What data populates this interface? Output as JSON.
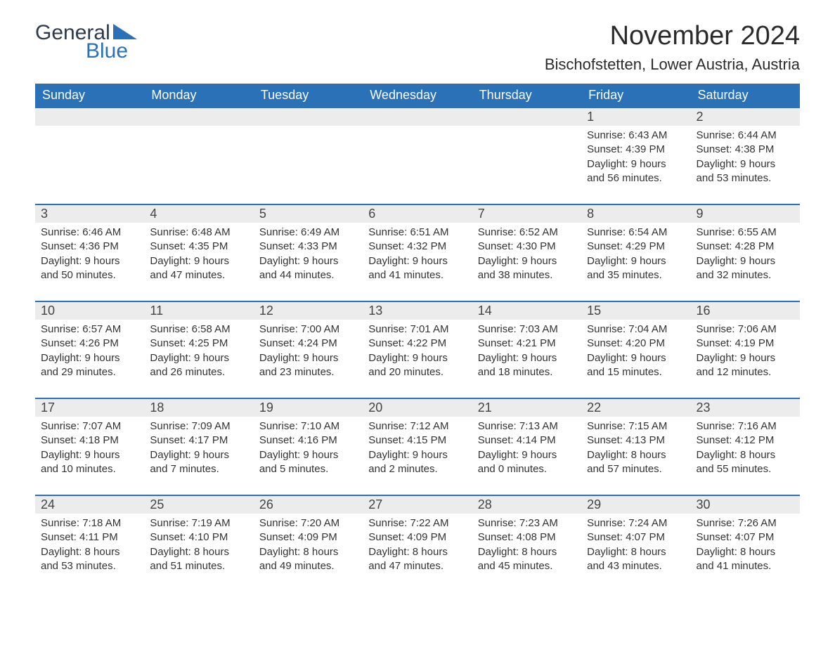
{
  "brand": {
    "word1": "General",
    "word2": "Blue",
    "tri_color": "#2a71b8"
  },
  "title": "November 2024",
  "location": "Bischofstetten, Lower Austria, Austria",
  "colors": {
    "header_bg": "#2a71b8",
    "header_fg": "#ffffff",
    "row_sep": "#2a71b8",
    "daynum_bg": "#ececec",
    "text": "#333333",
    "page_bg": "#ffffff"
  },
  "fonts": {
    "title_pt": 38,
    "location_pt": 22,
    "dow_pt": 18,
    "daynum_pt": 18,
    "body_pt": 15
  },
  "days_of_week": [
    "Sunday",
    "Monday",
    "Tuesday",
    "Wednesday",
    "Thursday",
    "Friday",
    "Saturday"
  ],
  "weeks": [
    [
      null,
      null,
      null,
      null,
      null,
      {
        "n": "1",
        "sunrise": "Sunrise: 6:43 AM",
        "sunset": "Sunset: 4:39 PM",
        "day1": "Daylight: 9 hours",
        "day2": "and 56 minutes."
      },
      {
        "n": "2",
        "sunrise": "Sunrise: 6:44 AM",
        "sunset": "Sunset: 4:38 PM",
        "day1": "Daylight: 9 hours",
        "day2": "and 53 minutes."
      }
    ],
    [
      {
        "n": "3",
        "sunrise": "Sunrise: 6:46 AM",
        "sunset": "Sunset: 4:36 PM",
        "day1": "Daylight: 9 hours",
        "day2": "and 50 minutes."
      },
      {
        "n": "4",
        "sunrise": "Sunrise: 6:48 AM",
        "sunset": "Sunset: 4:35 PM",
        "day1": "Daylight: 9 hours",
        "day2": "and 47 minutes."
      },
      {
        "n": "5",
        "sunrise": "Sunrise: 6:49 AM",
        "sunset": "Sunset: 4:33 PM",
        "day1": "Daylight: 9 hours",
        "day2": "and 44 minutes."
      },
      {
        "n": "6",
        "sunrise": "Sunrise: 6:51 AM",
        "sunset": "Sunset: 4:32 PM",
        "day1": "Daylight: 9 hours",
        "day2": "and 41 minutes."
      },
      {
        "n": "7",
        "sunrise": "Sunrise: 6:52 AM",
        "sunset": "Sunset: 4:30 PM",
        "day1": "Daylight: 9 hours",
        "day2": "and 38 minutes."
      },
      {
        "n": "8",
        "sunrise": "Sunrise: 6:54 AM",
        "sunset": "Sunset: 4:29 PM",
        "day1": "Daylight: 9 hours",
        "day2": "and 35 minutes."
      },
      {
        "n": "9",
        "sunrise": "Sunrise: 6:55 AM",
        "sunset": "Sunset: 4:28 PM",
        "day1": "Daylight: 9 hours",
        "day2": "and 32 minutes."
      }
    ],
    [
      {
        "n": "10",
        "sunrise": "Sunrise: 6:57 AM",
        "sunset": "Sunset: 4:26 PM",
        "day1": "Daylight: 9 hours",
        "day2": "and 29 minutes."
      },
      {
        "n": "11",
        "sunrise": "Sunrise: 6:58 AM",
        "sunset": "Sunset: 4:25 PM",
        "day1": "Daylight: 9 hours",
        "day2": "and 26 minutes."
      },
      {
        "n": "12",
        "sunrise": "Sunrise: 7:00 AM",
        "sunset": "Sunset: 4:24 PM",
        "day1": "Daylight: 9 hours",
        "day2": "and 23 minutes."
      },
      {
        "n": "13",
        "sunrise": "Sunrise: 7:01 AM",
        "sunset": "Sunset: 4:22 PM",
        "day1": "Daylight: 9 hours",
        "day2": "and 20 minutes."
      },
      {
        "n": "14",
        "sunrise": "Sunrise: 7:03 AM",
        "sunset": "Sunset: 4:21 PM",
        "day1": "Daylight: 9 hours",
        "day2": "and 18 minutes."
      },
      {
        "n": "15",
        "sunrise": "Sunrise: 7:04 AM",
        "sunset": "Sunset: 4:20 PM",
        "day1": "Daylight: 9 hours",
        "day2": "and 15 minutes."
      },
      {
        "n": "16",
        "sunrise": "Sunrise: 7:06 AM",
        "sunset": "Sunset: 4:19 PM",
        "day1": "Daylight: 9 hours",
        "day2": "and 12 minutes."
      }
    ],
    [
      {
        "n": "17",
        "sunrise": "Sunrise: 7:07 AM",
        "sunset": "Sunset: 4:18 PM",
        "day1": "Daylight: 9 hours",
        "day2": "and 10 minutes."
      },
      {
        "n": "18",
        "sunrise": "Sunrise: 7:09 AM",
        "sunset": "Sunset: 4:17 PM",
        "day1": "Daylight: 9 hours",
        "day2": "and 7 minutes."
      },
      {
        "n": "19",
        "sunrise": "Sunrise: 7:10 AM",
        "sunset": "Sunset: 4:16 PM",
        "day1": "Daylight: 9 hours",
        "day2": "and 5 minutes."
      },
      {
        "n": "20",
        "sunrise": "Sunrise: 7:12 AM",
        "sunset": "Sunset: 4:15 PM",
        "day1": "Daylight: 9 hours",
        "day2": "and 2 minutes."
      },
      {
        "n": "21",
        "sunrise": "Sunrise: 7:13 AM",
        "sunset": "Sunset: 4:14 PM",
        "day1": "Daylight: 9 hours",
        "day2": "and 0 minutes."
      },
      {
        "n": "22",
        "sunrise": "Sunrise: 7:15 AM",
        "sunset": "Sunset: 4:13 PM",
        "day1": "Daylight: 8 hours",
        "day2": "and 57 minutes."
      },
      {
        "n": "23",
        "sunrise": "Sunrise: 7:16 AM",
        "sunset": "Sunset: 4:12 PM",
        "day1": "Daylight: 8 hours",
        "day2": "and 55 minutes."
      }
    ],
    [
      {
        "n": "24",
        "sunrise": "Sunrise: 7:18 AM",
        "sunset": "Sunset: 4:11 PM",
        "day1": "Daylight: 8 hours",
        "day2": "and 53 minutes."
      },
      {
        "n": "25",
        "sunrise": "Sunrise: 7:19 AM",
        "sunset": "Sunset: 4:10 PM",
        "day1": "Daylight: 8 hours",
        "day2": "and 51 minutes."
      },
      {
        "n": "26",
        "sunrise": "Sunrise: 7:20 AM",
        "sunset": "Sunset: 4:09 PM",
        "day1": "Daylight: 8 hours",
        "day2": "and 49 minutes."
      },
      {
        "n": "27",
        "sunrise": "Sunrise: 7:22 AM",
        "sunset": "Sunset: 4:09 PM",
        "day1": "Daylight: 8 hours",
        "day2": "and 47 minutes."
      },
      {
        "n": "28",
        "sunrise": "Sunrise: 7:23 AM",
        "sunset": "Sunset: 4:08 PM",
        "day1": "Daylight: 8 hours",
        "day2": "and 45 minutes."
      },
      {
        "n": "29",
        "sunrise": "Sunrise: 7:24 AM",
        "sunset": "Sunset: 4:07 PM",
        "day1": "Daylight: 8 hours",
        "day2": "and 43 minutes."
      },
      {
        "n": "30",
        "sunrise": "Sunrise: 7:26 AM",
        "sunset": "Sunset: 4:07 PM",
        "day1": "Daylight: 8 hours",
        "day2": "and 41 minutes."
      }
    ]
  ]
}
